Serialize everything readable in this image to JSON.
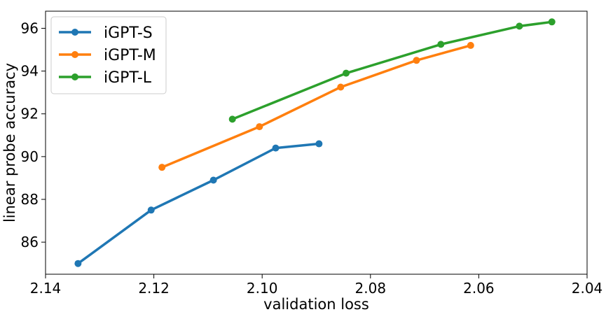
{
  "chart_data": {
    "type": "line",
    "title": "",
    "xlabel": "validation loss",
    "ylabel": "linear probe accuracy",
    "xlim": [
      2.14,
      2.04
    ],
    "x_inverted": true,
    "ylim": [
      84.5,
      96.8
    ],
    "xticks": [
      2.14,
      2.12,
      2.1,
      2.08,
      2.06,
      2.04
    ],
    "xtick_labels": [
      "2.14",
      "2.12",
      "2.10",
      "2.08",
      "2.06",
      "2.04"
    ],
    "yticks": [
      86,
      88,
      90,
      92,
      94,
      96
    ],
    "ytick_labels": [
      "86",
      "88",
      "90",
      "92",
      "94",
      "96"
    ],
    "grid": false,
    "legend_position": "top-left",
    "series": [
      {
        "name": "iGPT-S",
        "color": "#1f77b4",
        "x": [
          2.134,
          2.1205,
          2.109,
          2.0975,
          2.0895
        ],
        "y": [
          85.0,
          87.5,
          88.9,
          90.4,
          90.6
        ]
      },
      {
        "name": "iGPT-M",
        "color": "#ff7f0e",
        "x": [
          2.1185,
          2.1005,
          2.0855,
          2.0715,
          2.0615
        ],
        "y": [
          89.5,
          91.4,
          93.25,
          94.5,
          95.2
        ]
      },
      {
        "name": "iGPT-L",
        "color": "#2ca02c",
        "x": [
          2.1055,
          2.0845,
          2.067,
          2.0525,
          2.0465
        ],
        "y": [
          91.75,
          93.9,
          95.25,
          96.1,
          96.3
        ]
      }
    ]
  }
}
